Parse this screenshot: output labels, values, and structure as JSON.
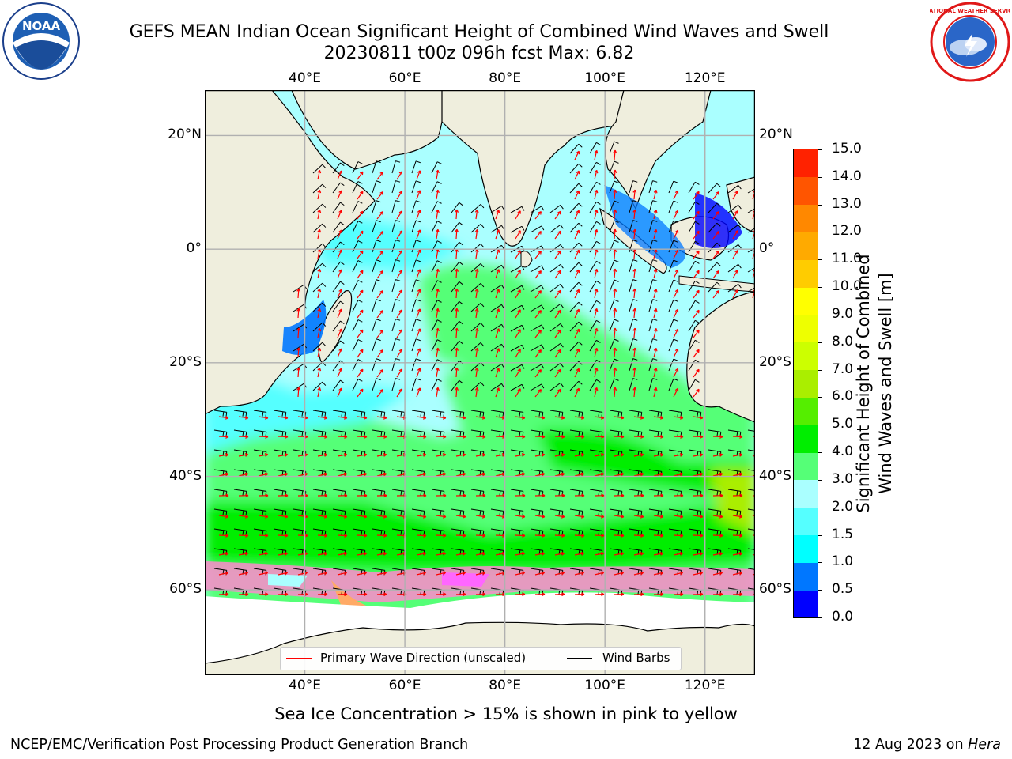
{
  "title": {
    "line1": "GEFS MEAN Indian Ocean Significant Height of Combined Wind Waves and Swell",
    "line2": "20230811 t00z 096h fcst   Max: 6.82"
  },
  "map": {
    "lon_labels": [
      "40°E",
      "60°E",
      "80°E",
      "100°E",
      "120°E"
    ],
    "lon_values": [
      40,
      60,
      80,
      100,
      120
    ],
    "lat_labels": [
      "20°N",
      "0°",
      "20°S",
      "40°S",
      "60°S"
    ],
    "lat_values": [
      20,
      0,
      -20,
      -40,
      -60
    ],
    "extent": {
      "lon_min": 20,
      "lon_max": 130,
      "lat_min": -75,
      "lat_max": 28
    },
    "colors": {
      "land": "#efeedd",
      "ice_free_low": "#aaffff",
      "grid": "#b0b0b0"
    }
  },
  "legend": {
    "wave_label": "Primary Wave Direction (unscaled)",
    "wave_color": "#ff0000",
    "barb_label": "Wind Barbs",
    "barb_color": "#000000"
  },
  "colorbar": {
    "label_line1": "Significant Height of Combined",
    "label_line2": "Wind Waves and Swell [m]",
    "ticks": [
      "0.0",
      "0.5",
      "1.0",
      "1.5",
      "2.0",
      "3.0",
      "4.0",
      "5.0",
      "6.0",
      "7.0",
      "8.0",
      "9.0",
      "10.0",
      "11.0",
      "12.0",
      "13.0",
      "14.0",
      "15.0"
    ],
    "colors": [
      "#0000ff",
      "#0077ff",
      "#00ffff",
      "#55ffff",
      "#aaffff",
      "#55ff77",
      "#00ee00",
      "#55ee00",
      "#aaee00",
      "#ccff00",
      "#eeff00",
      "#ffff00",
      "#ffcc00",
      "#ffaa00",
      "#ff8800",
      "#ff5500",
      "#ff2200"
    ]
  },
  "note": "Sea Ice Concentration > 15% is shown in pink to yellow",
  "footer": {
    "left": "NCEP/EMC/Verification Post Processing Product Generation Branch",
    "date": "12 Aug 2023 on ",
    "machine": "Hera"
  },
  "logos": {
    "noaa_text": "NOAA",
    "noaa_ring": "NATIONAL OCEANIC AND ATMOSPHERIC ADMINISTRATION · U.S. DEPARTMENT OF COMMERCE",
    "nws_ring": "NATIONAL WEATHER SERVICE"
  }
}
